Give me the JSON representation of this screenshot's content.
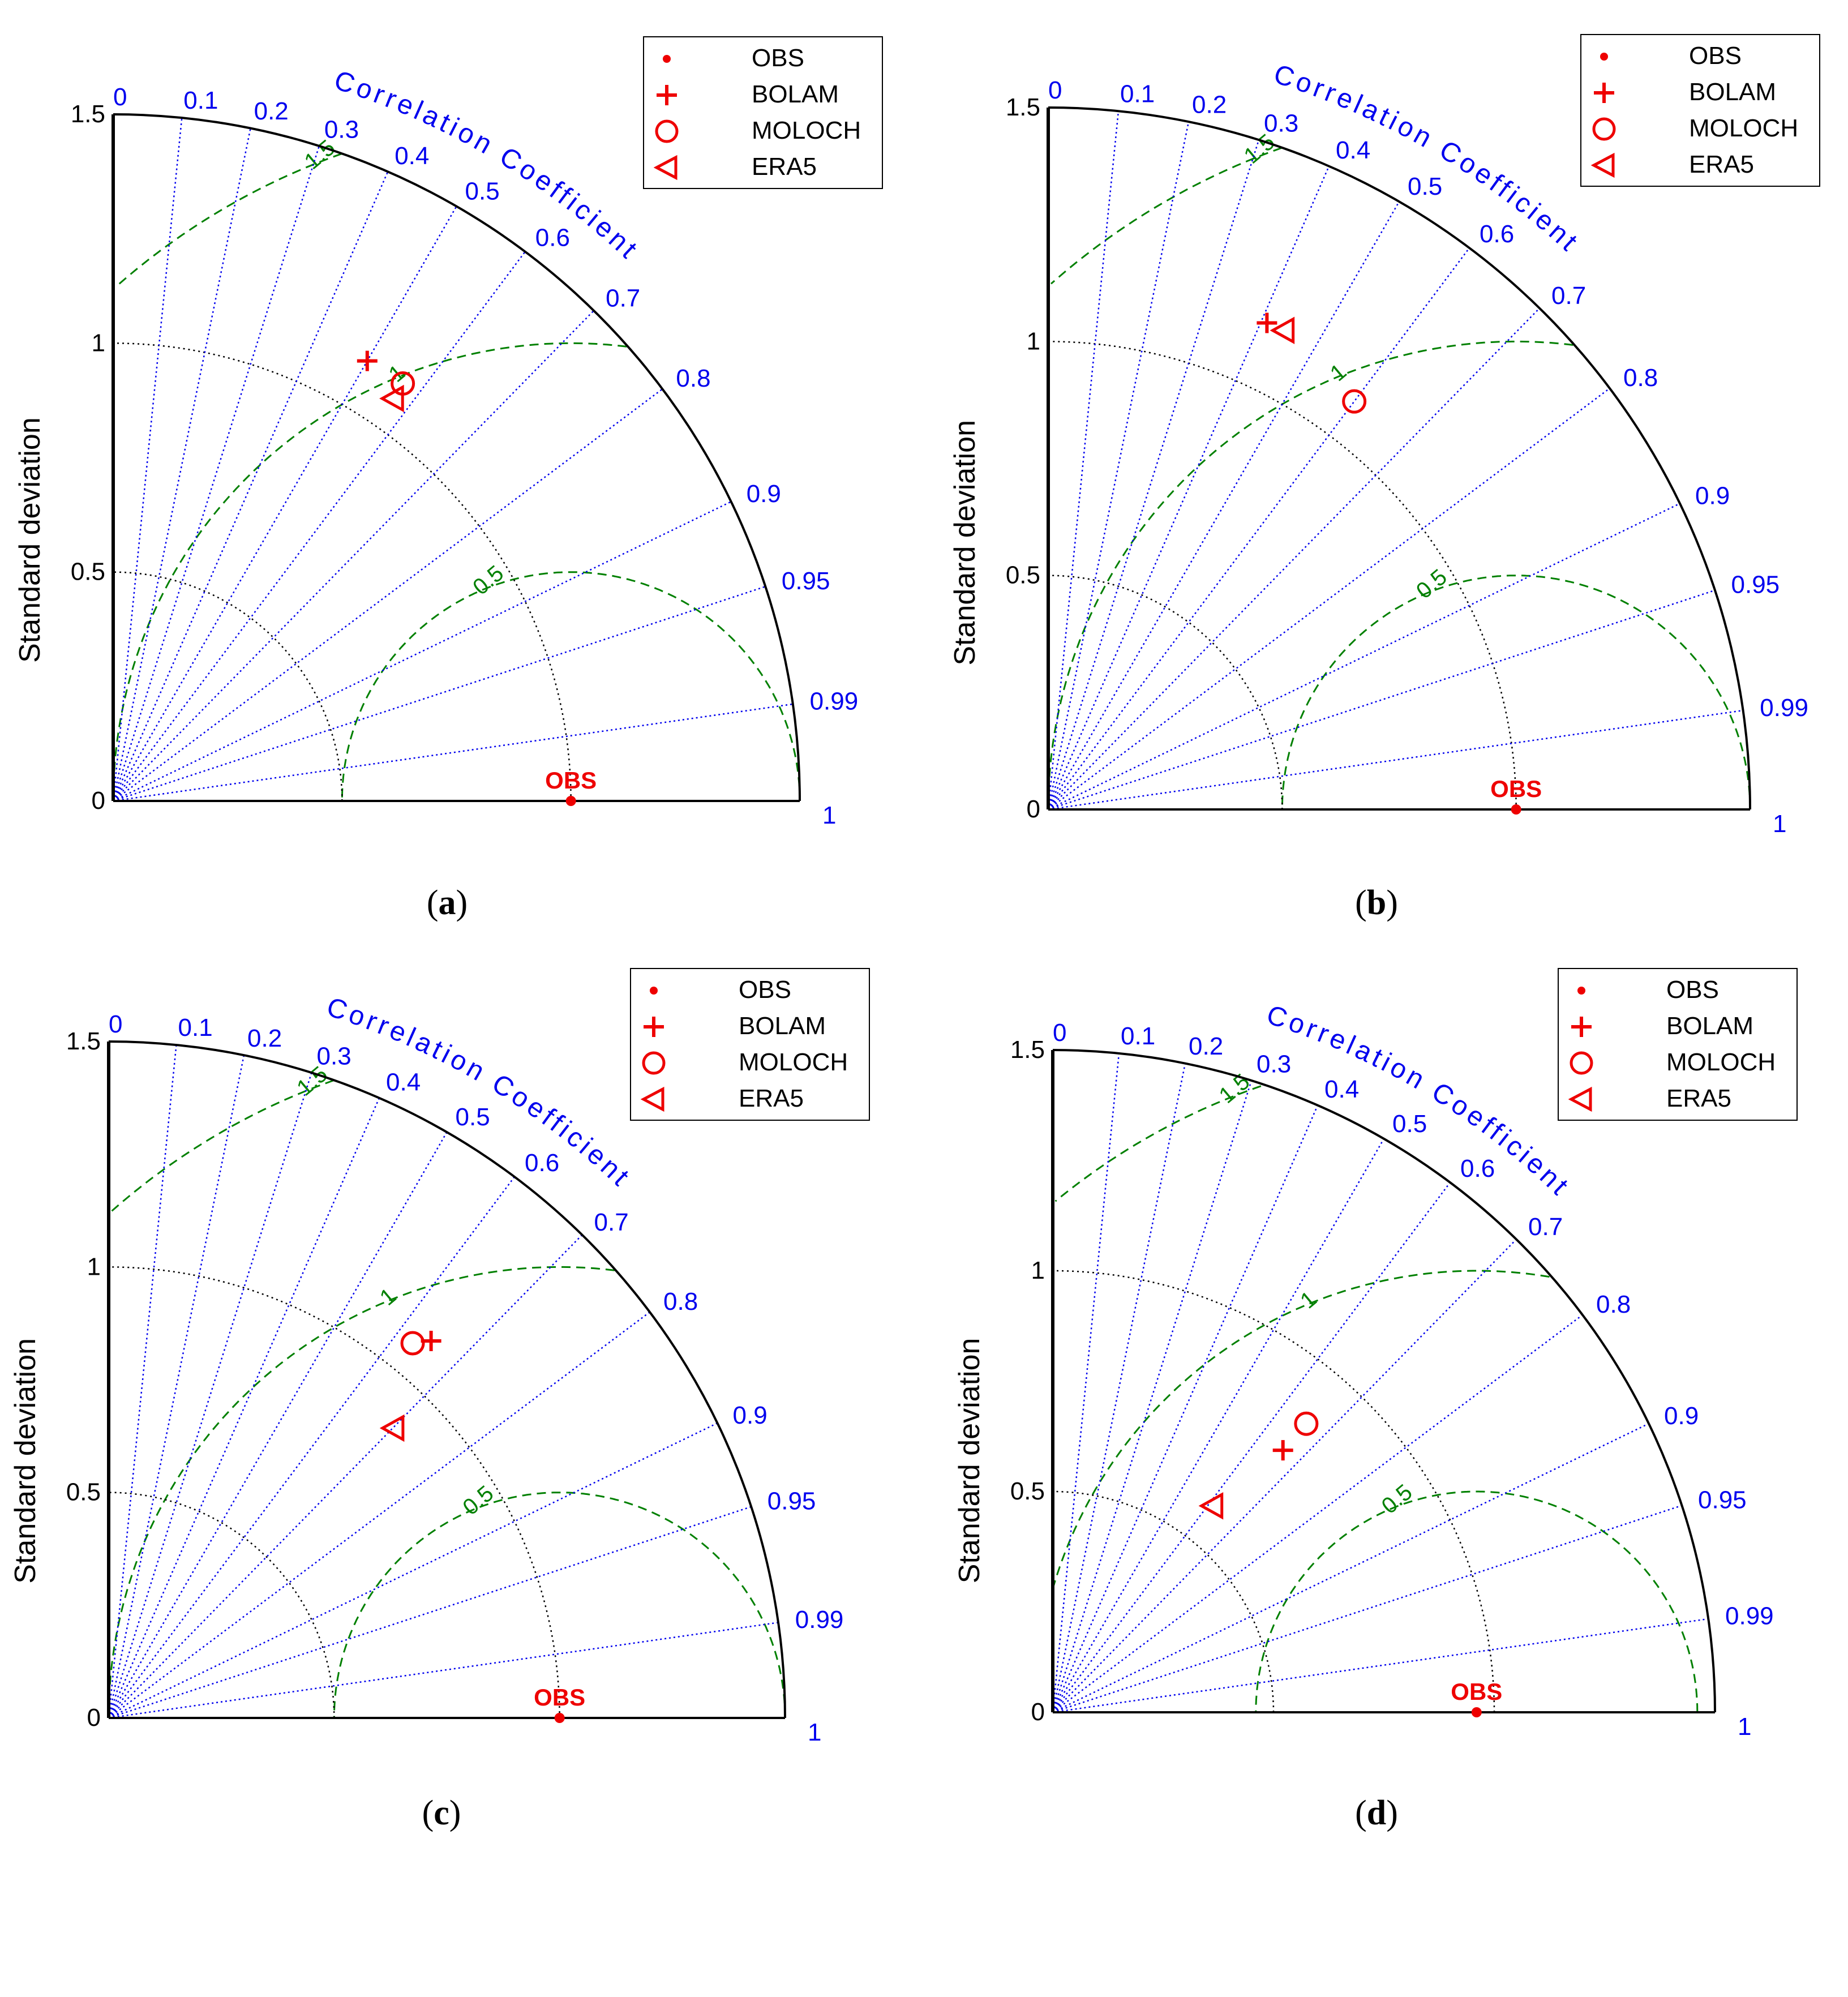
{
  "figure": {
    "panels": [
      {
        "label": "a",
        "legend": {
          "items": [
            {
              "name": "OBS"
            },
            {
              "name": "BOLAM"
            },
            {
              "name": "MOLOCH"
            },
            {
              "name": "ERA5"
            }
          ]
        }
      },
      {
        "label": "b",
        "legend": {
          "items": [
            {
              "name": "OBS"
            },
            {
              "name": "BOLAM"
            },
            {
              "name": "MOLOCH"
            },
            {
              "name": "ERA5"
            }
          ]
        }
      },
      {
        "label": "c",
        "legend": {
          "items": [
            {
              "name": "OBS"
            },
            {
              "name": "BOLAM"
            },
            {
              "name": "MOLOCH"
            },
            {
              "name": "ERA5"
            }
          ]
        }
      },
      {
        "label": "d",
        "legend": {
          "items": [
            {
              "name": "OBS"
            },
            {
              "name": "BOLAM"
            },
            {
              "name": "MOLOCH"
            },
            {
              "name": "ERA5"
            }
          ]
        }
      }
    ]
  },
  "colors": {
    "axis": "#000000",
    "correlation": "#0000ee",
    "rmsd": "#008000",
    "std_arc": "#000000",
    "markers": "#ee0000"
  },
  "chart_data": [
    {
      "type": "taylor",
      "panel": "a",
      "ylabel": "Standard deviation",
      "correlation_label": "Correlation Coefficient",
      "std_ticks": [
        "0",
        "0.5",
        "1",
        "1.5"
      ],
      "std_max": 1.5,
      "std_arcs": [
        0.5,
        1.0
      ],
      "correlation_ticks": [
        "0",
        "0.1",
        "0.2",
        "0.3",
        "0.4",
        "0.5",
        "0.6",
        "0.7",
        "0.8",
        "0.9",
        "0.95",
        "0.99",
        "1"
      ],
      "rmsd_arcs": [
        "0.5",
        "1",
        "1.5"
      ],
      "points": [
        {
          "name": "OBS",
          "marker": "dot",
          "std": 1.0,
          "corr": 1.0,
          "annotation": "OBS"
        },
        {
          "name": "BOLAM",
          "marker": "plus",
          "std": 1.11,
          "corr": 0.5
        },
        {
          "name": "MOLOCH",
          "marker": "circle",
          "std": 1.11,
          "corr": 0.57
        },
        {
          "name": "ERA5",
          "marker": "triangle",
          "std": 1.07,
          "corr": 0.57
        }
      ]
    },
    {
      "type": "taylor",
      "panel": "b",
      "ylabel": "Standard deviation",
      "correlation_label": "Correlation Coefficient",
      "std_ticks": [
        "0",
        "0.5",
        "1",
        "1.5"
      ],
      "std_max": 1.5,
      "std_arcs": [
        0.5,
        1.0
      ],
      "correlation_ticks": [
        "0",
        "0.1",
        "0.2",
        "0.3",
        "0.4",
        "0.5",
        "0.6",
        "0.7",
        "0.8",
        "0.9",
        "0.95",
        "0.99",
        "1"
      ],
      "rmsd_arcs": [
        "0.5",
        "1",
        "1.5"
      ],
      "points": [
        {
          "name": "OBS",
          "marker": "dot",
          "std": 1.0,
          "corr": 1.0,
          "annotation": "OBS"
        },
        {
          "name": "BOLAM",
          "marker": "plus",
          "std": 1.14,
          "corr": 0.41
        },
        {
          "name": "MOLOCH",
          "marker": "circle",
          "std": 1.09,
          "corr": 0.6
        },
        {
          "name": "ERA5",
          "marker": "triangle",
          "std": 1.14,
          "corr": 0.44
        }
      ]
    },
    {
      "type": "taylor",
      "panel": "c",
      "ylabel": "Standard deviation",
      "correlation_label": "Correlation Coefficient",
      "std_ticks": [
        "0",
        "0.5",
        "1",
        "1.5"
      ],
      "std_max": 1.5,
      "std_arcs": [
        0.5,
        1.0
      ],
      "correlation_ticks": [
        "0",
        "0.1",
        "0.2",
        "0.3",
        "0.4",
        "0.5",
        "0.6",
        "0.7",
        "0.8",
        "0.9",
        "0.95",
        "0.99",
        "1"
      ],
      "rmsd_arcs": [
        "0.5",
        "1",
        "1.5"
      ],
      "points": [
        {
          "name": "OBS",
          "marker": "dot",
          "std": 1.0,
          "corr": 1.0,
          "annotation": "OBS"
        },
        {
          "name": "BOLAM",
          "marker": "plus",
          "std": 1.1,
          "corr": 0.65
        },
        {
          "name": "MOLOCH",
          "marker": "circle",
          "std": 1.07,
          "corr": 0.63
        },
        {
          "name": "ERA5",
          "marker": "triangle",
          "std": 0.9,
          "corr": 0.7
        }
      ]
    },
    {
      "type": "taylor",
      "panel": "d",
      "ylabel": "Standard deviation",
      "correlation_label": "Correlation Coefficient",
      "std_ticks": [
        "0",
        "0.5",
        "1",
        "1.5"
      ],
      "std_max": 1.5,
      "std_arcs": [
        0.5,
        1.0
      ],
      "correlation_ticks": [
        "0",
        "0.1",
        "0.2",
        "0.3",
        "0.4",
        "0.5",
        "0.6",
        "0.7",
        "0.8",
        "0.9",
        "0.95",
        "0.99",
        "1"
      ],
      "rmsd_arcs": [
        "0.5",
        "1",
        "1.5"
      ],
      "points": [
        {
          "name": "OBS",
          "marker": "dot",
          "std": 0.96,
          "corr": 1.0,
          "annotation": "OBS"
        },
        {
          "name": "BOLAM",
          "marker": "plus",
          "std": 0.79,
          "corr": 0.66
        },
        {
          "name": "MOLOCH",
          "marker": "circle",
          "std": 0.87,
          "corr": 0.66
        },
        {
          "name": "ERA5",
          "marker": "triangle",
          "std": 0.59,
          "corr": 0.61
        }
      ]
    }
  ]
}
